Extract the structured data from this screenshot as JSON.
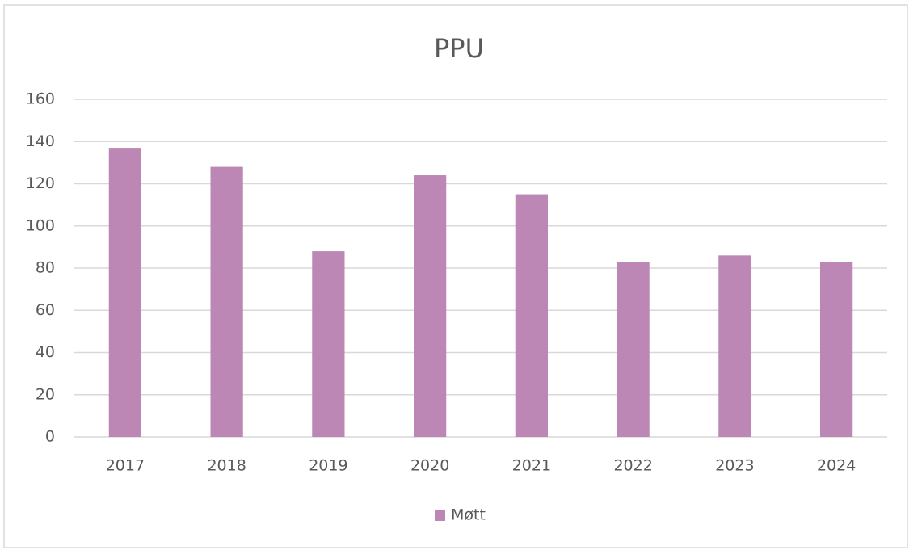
{
  "chart_data": {
    "type": "bar",
    "title": "PPU",
    "categories": [
      "2017",
      "2018",
      "2019",
      "2020",
      "2021",
      "2022",
      "2023",
      "2024"
    ],
    "series": [
      {
        "name": "Møtt",
        "color": "#bc87b5",
        "values": [
          137,
          128,
          88,
          124,
          115,
          83,
          86,
          83
        ]
      }
    ],
    "ylim": [
      0,
      160
    ],
    "yticks": [
      0,
      20,
      40,
      60,
      80,
      100,
      120,
      140,
      160
    ],
    "grid": true,
    "legend": "bottom"
  }
}
